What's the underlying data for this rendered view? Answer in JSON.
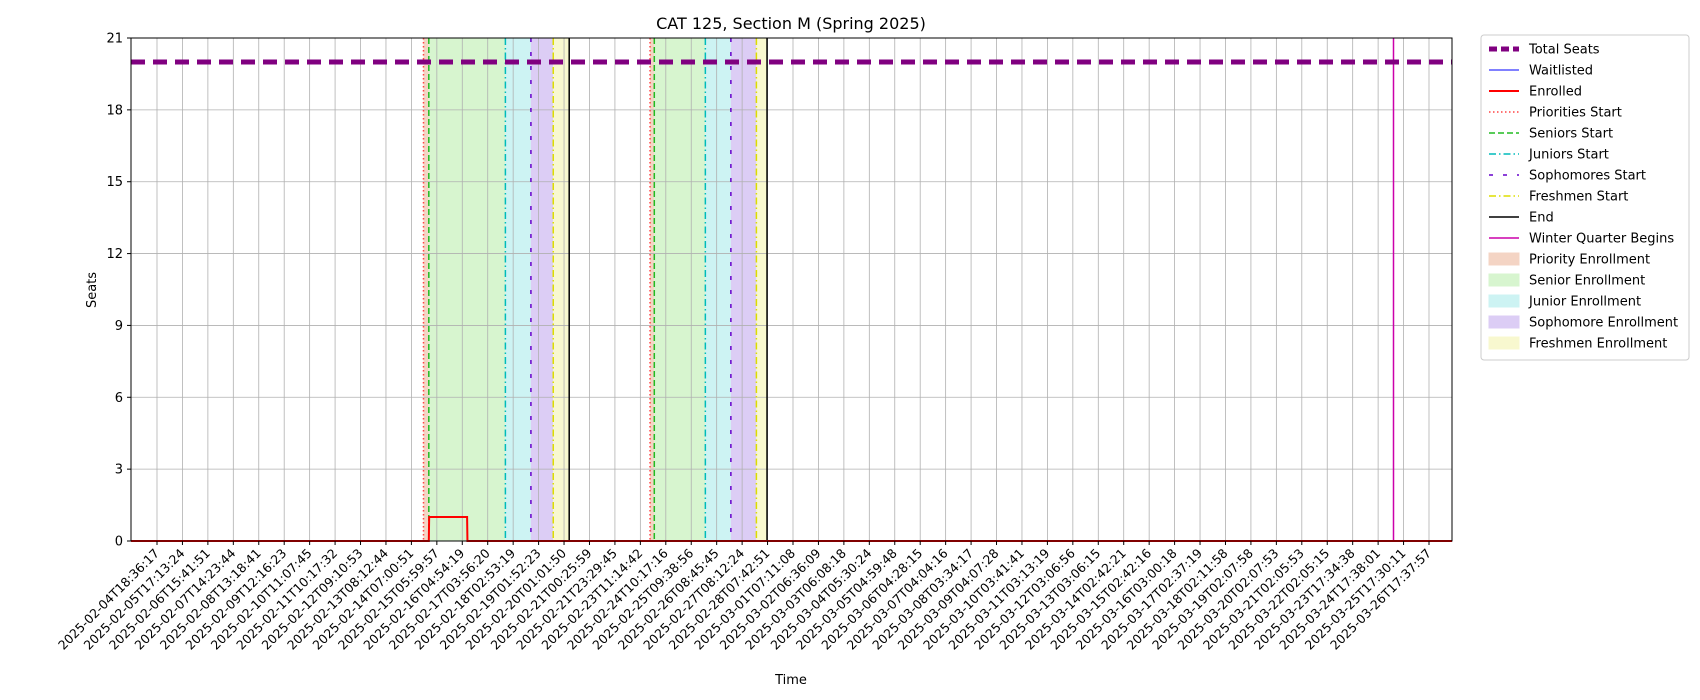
{
  "chart_data": {
    "type": "line",
    "title": "CAT 125, Section M (Spring 2025)",
    "xlabel": "Time",
    "ylabel": "Seats",
    "ylim": [
      0,
      21
    ],
    "yticks": [
      0,
      3,
      6,
      9,
      12,
      15,
      18,
      21
    ],
    "grid": true,
    "legend_position": "outside-right",
    "xlim": [
      "2025-02-04T12:00:00",
      "2025-03-28T06:00:00"
    ],
    "xtick_labels": [
      "2025-02-04T18:36:17",
      "2025-02-05T17:13:24",
      "2025-02-06T15:41:51",
      "2025-02-07T14:23:44",
      "2025-02-08T13:18:41",
      "2025-02-09T12:16:23",
      "2025-02-10T11:07:45",
      "2025-02-11T10:17:32",
      "2025-02-12T09:10:53",
      "2025-02-13T08:12:44",
      "2025-02-14T07:00:51",
      "2025-02-15T05:59:57",
      "2025-02-16T04:54:19",
      "2025-02-17T03:56:20",
      "2025-02-18T02:53:19",
      "2025-02-19T01:52:23",
      "2025-02-20T01:01:50",
      "2025-02-21T00:25:59",
      "2025-02-21T23:29:45",
      "2025-02-23T11:14:42",
      "2025-02-24T10:17:16",
      "2025-02-25T09:38:56",
      "2025-02-26T08:45:45",
      "2025-02-27T08:12:24",
      "2025-02-28T07:42:51",
      "2025-03-01T07:11:08",
      "2025-03-02T06:36:09",
      "2025-03-03T06:08:18",
      "2025-03-04T05:30:24",
      "2025-03-05T04:59:48",
      "2025-03-06T04:28:15",
      "2025-03-07T04:04:16",
      "2025-03-08T03:34:17",
      "2025-03-09T04:07:28",
      "2025-03-10T03:41:41",
      "2025-03-11T03:13:19",
      "2025-03-12T03:06:56",
      "2025-03-13T03:06:15",
      "2025-03-14T02:42:21",
      "2025-03-15T02:42:16",
      "2025-03-16T03:00:18",
      "2025-03-17T02:37:19",
      "2025-03-18T02:11:58",
      "2025-03-19T02:07:58",
      "2025-03-20T02:07:53",
      "2025-03-21T02:05:53",
      "2025-03-22T02:05:15",
      "2025-03-23T17:34:38",
      "2025-03-24T17:38:01",
      "2025-03-25T17:30:11",
      "2025-03-26T17:37:57"
    ],
    "series": [
      {
        "name": "Total Seats",
        "color": "#800080",
        "style": "dashed",
        "width": 5,
        "points": [
          [
            "2025-02-04T12:00:00",
            20
          ],
          [
            "2025-03-28T06:00:00",
            20
          ]
        ]
      },
      {
        "name": "Waitlisted",
        "color": "#0000ff",
        "style": "solid",
        "width": 1,
        "points": [
          [
            "2025-02-04T12:00:00",
            0
          ],
          [
            "2025-03-28T06:00:00",
            0
          ]
        ]
      },
      {
        "name": "Enrolled",
        "color": "#ff0000",
        "style": "solid",
        "width": 2,
        "points": [
          [
            "2025-02-04T12:00:00",
            0
          ],
          [
            "2025-02-16T04:00:00",
            0
          ],
          [
            "2025-02-16T04:20:00",
            1
          ],
          [
            "2025-02-17T16:00:00",
            1
          ],
          [
            "2025-02-17T16:20:00",
            0
          ],
          [
            "2025-03-28T06:00:00",
            0
          ]
        ]
      }
    ],
    "vertical_lines": [
      {
        "name": "Priorities Start",
        "color": "#ff4444",
        "style": "dotted",
        "times": [
          "2025-02-15T23:00:00",
          "2025-02-24T20:00:00"
        ]
      },
      {
        "name": "Seniors Start",
        "color": "#22bb22",
        "style": "dashed",
        "times": [
          "2025-02-16T04:00:00",
          "2025-02-25T00:00:00"
        ]
      },
      {
        "name": "Juniors Start",
        "color": "#00bbbb",
        "style": "dashdot",
        "times": [
          "2025-02-19T04:00:00",
          "2025-02-27T00:00:00"
        ]
      },
      {
        "name": "Sophomores Start",
        "color": "#6600cc",
        "style": "loosedash",
        "times": [
          "2025-02-20T04:00:00",
          "2025-02-28T00:00:00"
        ]
      },
      {
        "name": "Freshmen Start",
        "color": "#dddd00",
        "style": "dashdot",
        "times": [
          "2025-02-21T01:00:00",
          "2025-03-01T00:00:00"
        ]
      },
      {
        "name": "End",
        "color": "#000000",
        "style": "solid",
        "times": [
          "2025-02-21T16:00:00",
          "2025-03-01T10:00:00"
        ]
      },
      {
        "name": "Winter Quarter Begins",
        "color": "#cc00aa",
        "style": "solid",
        "times": [
          "2025-03-25T23:00:00"
        ]
      }
    ],
    "spans": [
      {
        "name": "Priority Enrollment",
        "color": "#f4d4c4",
        "ranges": [
          [
            "2025-02-15T23:00:00",
            "2025-02-16T04:00:00"
          ],
          [
            "2025-02-24T20:00:00",
            "2025-02-25T00:00:00"
          ]
        ]
      },
      {
        "name": "Senior Enrollment",
        "color": "#d7f5cf",
        "ranges": [
          [
            "2025-02-16T04:00:00",
            "2025-02-19T04:00:00"
          ],
          [
            "2025-02-25T00:00:00",
            "2025-02-27T00:00:00"
          ]
        ]
      },
      {
        "name": "Junior Enrollment",
        "color": "#cdf3f3",
        "ranges": [
          [
            "2025-02-19T04:00:00",
            "2025-02-20T04:00:00"
          ],
          [
            "2025-02-27T00:00:00",
            "2025-02-28T00:00:00"
          ]
        ]
      },
      {
        "name": "Sophomore Enrollment",
        "color": "#dccdf5",
        "ranges": [
          [
            "2025-02-20T04:00:00",
            "2025-02-21T01:00:00"
          ],
          [
            "2025-02-28T00:00:00",
            "2025-03-01T00:00:00"
          ]
        ]
      },
      {
        "name": "Freshmen Enrollment",
        "color": "#f8f8cf",
        "ranges": [
          [
            "2025-02-21T01:00:00",
            "2025-02-21T16:00:00"
          ],
          [
            "2025-03-01T00:00:00",
            "2025-03-01T10:00:00"
          ]
        ]
      }
    ],
    "legend": [
      "Total Seats",
      "Waitlisted",
      "Enrolled",
      "Priorities Start",
      "Seniors Start",
      "Juniors Start",
      "Sophomores Start",
      "Freshmen Start",
      "End",
      "Winter Quarter Begins",
      "Priority Enrollment",
      "Senior Enrollment",
      "Junior Enrollment",
      "Sophomore Enrollment",
      "Freshmen Enrollment"
    ]
  }
}
